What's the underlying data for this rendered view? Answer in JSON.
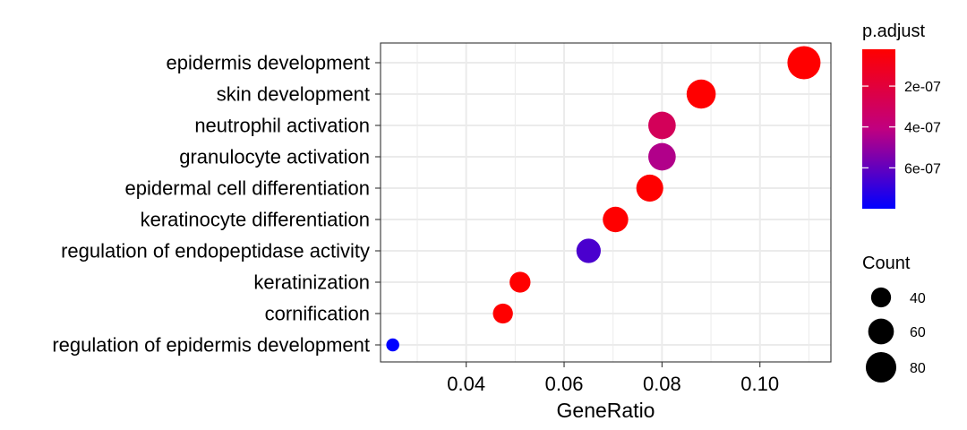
{
  "chart_data": {
    "type": "scatter",
    "title": "",
    "xlabel": "GeneRatio",
    "ylabel": "",
    "xlim": [
      0.0225,
      0.1145
    ],
    "xticks": [
      0.04,
      0.06,
      0.08,
      0.1
    ],
    "xtick_labels": [
      "0.04",
      "0.06",
      "0.08",
      "0.10"
    ],
    "grid": true,
    "categories": [
      "epidermis development",
      "skin development",
      "neutrophil activation",
      "granulocyte activation",
      "epidermal cell differentiation",
      "keratinocyte differentiation",
      "regulation of endopeptidase activity",
      "keratinization",
      "cornification",
      "regulation of epidermis development"
    ],
    "points": [
      {
        "term": "epidermis development",
        "GeneRatio": 0.109,
        "Count": 92,
        "p_adjust": 2e-08
      },
      {
        "term": "skin development",
        "GeneRatio": 0.088,
        "Count": 74,
        "p_adjust": 2e-08
      },
      {
        "term": "neutrophil activation",
        "GeneRatio": 0.08,
        "Count": 67,
        "p_adjust": 2.9e-07
      },
      {
        "term": "granulocyte activation",
        "GeneRatio": 0.08,
        "Count": 67,
        "p_adjust": 4.4e-07
      },
      {
        "term": "epidermal cell differentiation",
        "GeneRatio": 0.0775,
        "Count": 65,
        "p_adjust": 2e-08
      },
      {
        "term": "keratinocyte differentiation",
        "GeneRatio": 0.0705,
        "Count": 59,
        "p_adjust": 2e-08
      },
      {
        "term": "regulation of endopeptidase activity",
        "GeneRatio": 0.065,
        "Count": 55,
        "p_adjust": 6.5e-07
      },
      {
        "term": "keratinization",
        "GeneRatio": 0.051,
        "Count": 43,
        "p_adjust": 2e-08
      },
      {
        "term": "cornification",
        "GeneRatio": 0.0475,
        "Count": 40,
        "p_adjust": 2e-08
      },
      {
        "term": "regulation of epidermis development",
        "GeneRatio": 0.025,
        "Count": 21,
        "p_adjust": 8e-07
      }
    ],
    "color_legend": {
      "title": "p.adjust",
      "min": 2e-08,
      "max": 8e-07,
      "low_color": "#FF0000",
      "high_color": "#0000FF",
      "ticks": [
        2e-07,
        4e-07,
        6e-07
      ],
      "tick_labels": [
        "2e-07",
        "4e-07",
        "6e-07"
      ]
    },
    "size_legend": {
      "title": "Count",
      "values": [
        40,
        60,
        80
      ],
      "labels": [
        "40",
        "60",
        "80"
      ],
      "color": "#000000"
    },
    "legend_position": "right"
  }
}
